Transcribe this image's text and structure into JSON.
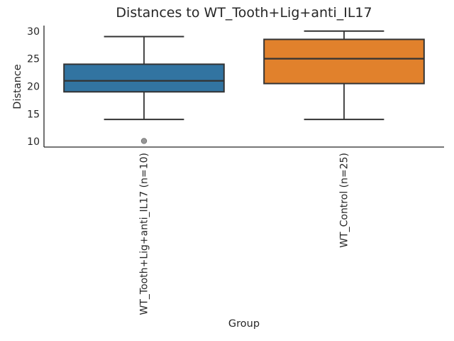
{
  "chart_data": {
    "type": "box",
    "title": "Distances to WT_Tooth+Lig+anti_IL17",
    "xlabel": "Group",
    "ylabel": "Distance",
    "ylim": [
      9,
      31
    ],
    "yticks": [
      10,
      15,
      20,
      25,
      30
    ],
    "grid": false,
    "legend": "none",
    "style": {
      "line_color": "#333333",
      "spine_color": "#262626",
      "text_color": "#262626",
      "outlier_fill": "#969696",
      "outlier_edge": "#6e6e6e",
      "background": "#ffffff"
    },
    "groups": [
      {
        "label": "WT_Tooth+Lig+anti_IL17 (n=10)",
        "color": "#3274A1",
        "whisker_low": 14,
        "q1": 19,
        "median": 21,
        "q3": 24,
        "whisker_high": 29,
        "outliers": [
          10.1
        ]
      },
      {
        "label": "WT_Control (n=25)",
        "color": "#E1812C",
        "whisker_low": 14,
        "q1": 20.5,
        "median": 25,
        "q3": 28.5,
        "whisker_high": 30,
        "outliers": []
      }
    ]
  }
}
